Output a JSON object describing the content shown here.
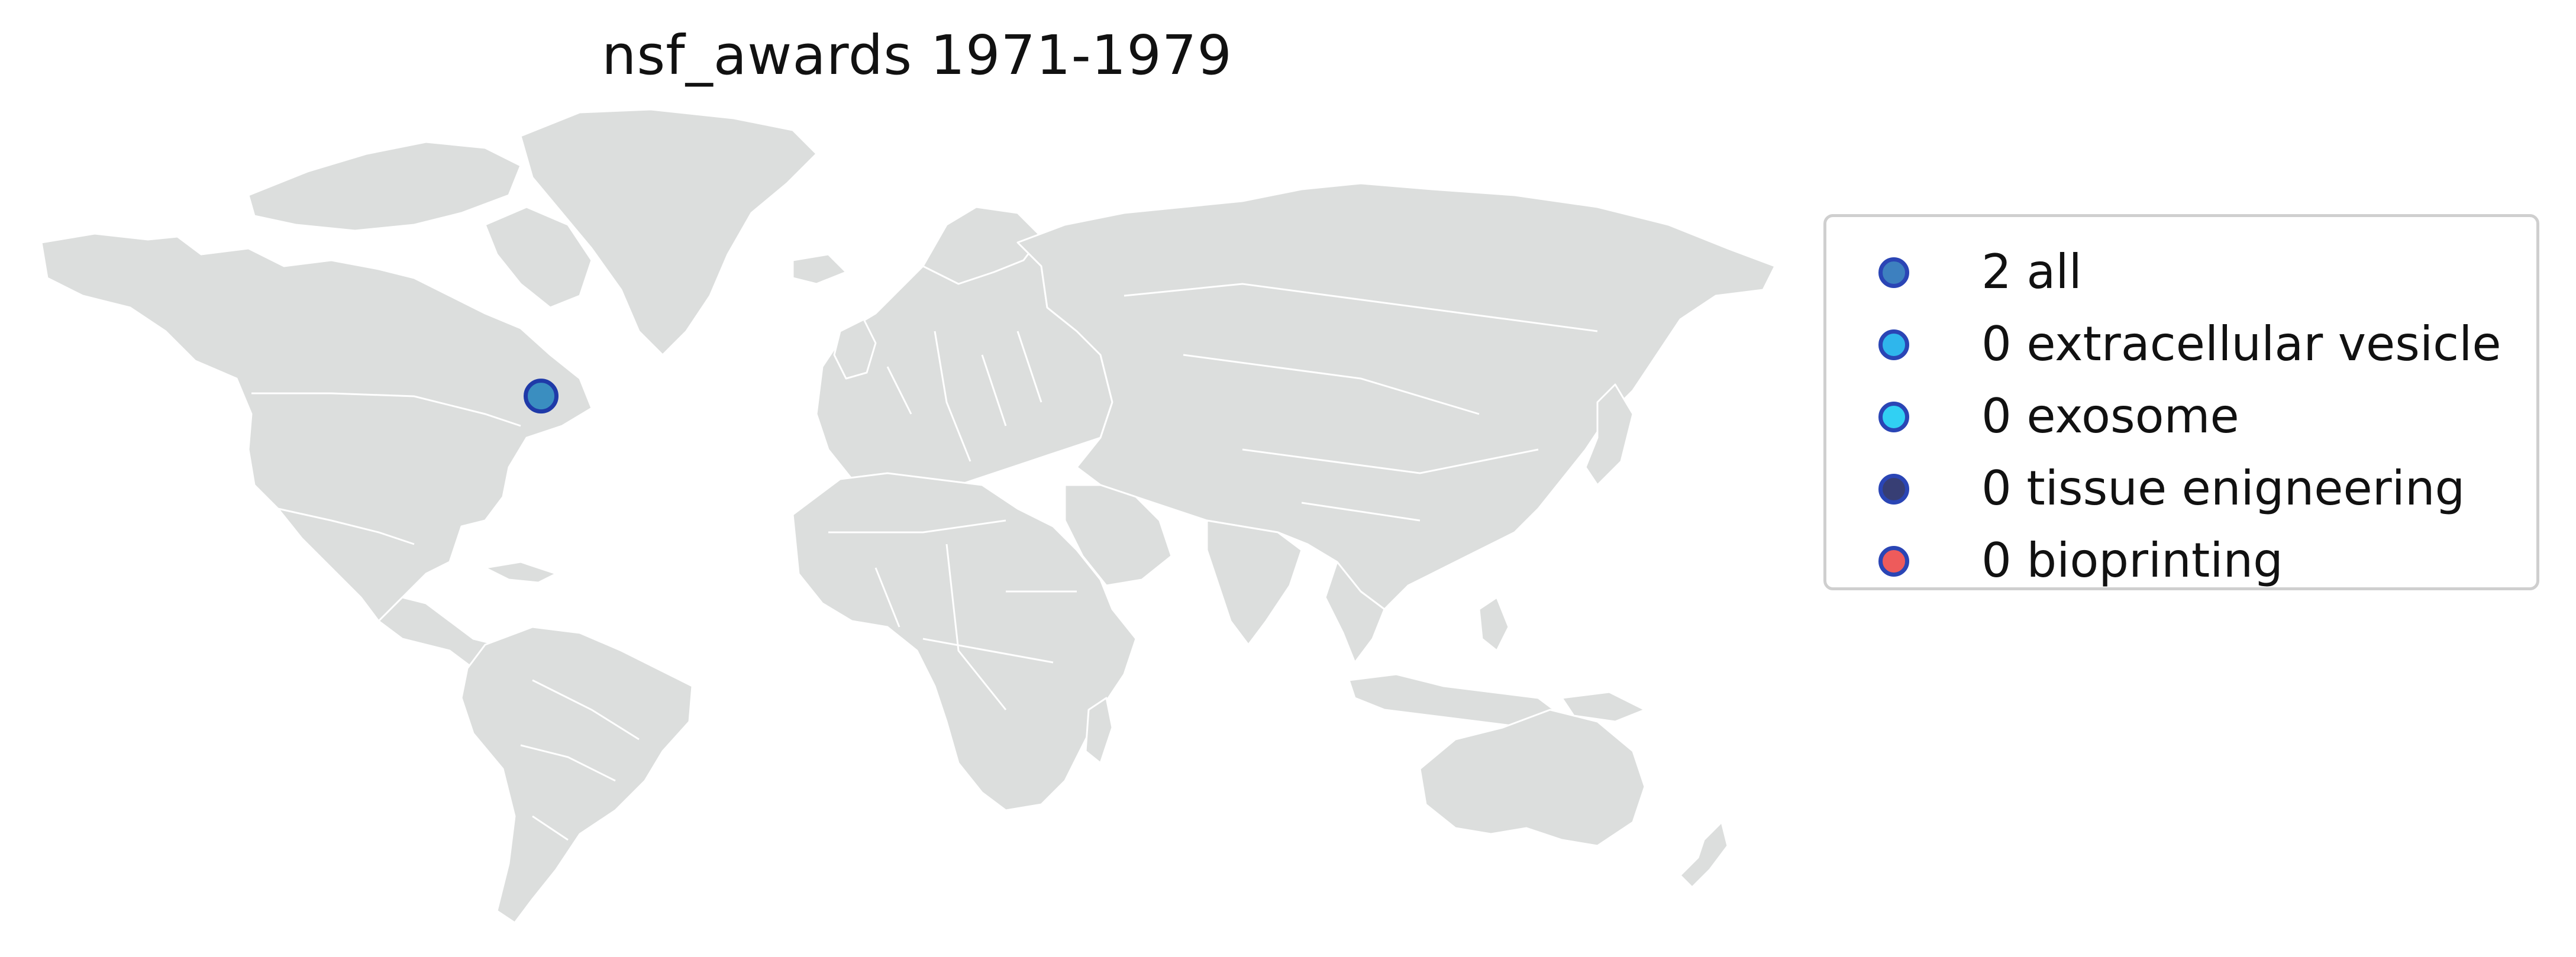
{
  "title": "nsf_awards 1971-1979",
  "colors": {
    "land": "#dcdedd",
    "border": "#ffffff",
    "marker_edge": "#2a45b5"
  },
  "markers": [
    {
      "series": "all",
      "lon": -76.6,
      "lat": 39.2,
      "color": "#3a8ec0",
      "edge": "#1f3aa8"
    }
  ],
  "legend": {
    "placement": "right",
    "items": [
      {
        "count": "2",
        "term": "all",
        "label": "2 all",
        "color": "#3d80bf"
      },
      {
        "count": "0",
        "term": "extracellular vesicle",
        "label": "0 extracellular vesicle",
        "color": "#2fb6ec"
      },
      {
        "count": "0",
        "term": "exosome",
        "label": "0 exosome",
        "color": "#31d0f3"
      },
      {
        "count": "0",
        "term": "tissue enigneering",
        "label": "0 tissue enigneering",
        "color": "#373e74"
      },
      {
        "count": "0",
        "term": "bioprinting",
        "label": "0 bioprinting",
        "color": "#ee5b5b"
      }
    ]
  }
}
